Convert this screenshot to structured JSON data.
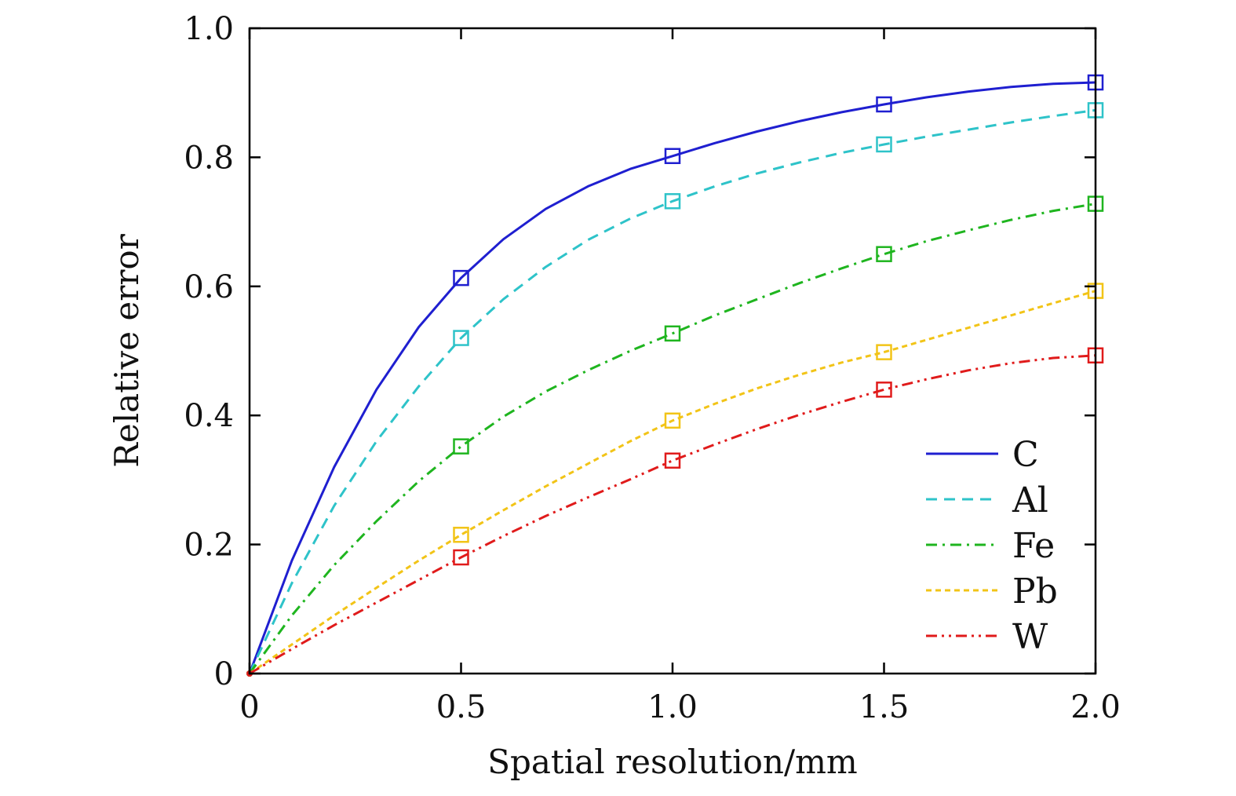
{
  "chart_data": {
    "type": "line",
    "xlabel": "Spatial resolution/mm",
    "ylabel": "Relative error",
    "xlim": [
      0,
      2.0
    ],
    "ylim": [
      0,
      1.0
    ],
    "x_ticks": [
      0,
      0.5,
      1.0,
      1.5,
      2.0
    ],
    "x_tick_labels": [
      "0",
      "0.5",
      "1.0",
      "1.5",
      "2.0"
    ],
    "y_ticks": [
      0,
      0.2,
      0.4,
      0.6,
      0.8,
      1.0
    ],
    "y_tick_labels": [
      "0",
      "0.2",
      "0.4",
      "0.6",
      "0.8",
      "1.0"
    ],
    "grid": false,
    "legend_position": "bottom-right",
    "marker": "square",
    "series": [
      {
        "name": "C",
        "color": "#1f1fd0",
        "dash": "solid",
        "x": [
          0,
          0.1,
          0.2,
          0.3,
          0.4,
          0.5,
          0.6,
          0.7,
          0.8,
          0.9,
          1.0,
          1.1,
          1.2,
          1.3,
          1.4,
          1.5,
          1.6,
          1.7,
          1.8,
          1.9,
          2.0
        ],
        "y": [
          0,
          0.175,
          0.32,
          0.44,
          0.537,
          0.613,
          0.673,
          0.72,
          0.755,
          0.782,
          0.802,
          0.822,
          0.84,
          0.856,
          0.87,
          0.882,
          0.893,
          0.902,
          0.909,
          0.914,
          0.916
        ],
        "marker_x": [
          0.5,
          1.0,
          1.5,
          2.0
        ],
        "marker_y": [
          0.613,
          0.802,
          0.882,
          0.916
        ]
      },
      {
        "name": "Al",
        "color": "#2ec3c9",
        "dash": "dashed",
        "x": [
          0,
          0.1,
          0.2,
          0.3,
          0.4,
          0.5,
          0.6,
          0.7,
          0.8,
          0.9,
          1.0,
          1.1,
          1.2,
          1.3,
          1.4,
          1.5,
          1.6,
          1.7,
          1.8,
          1.9,
          2.0
        ],
        "y": [
          0,
          0.14,
          0.26,
          0.36,
          0.445,
          0.52,
          0.58,
          0.63,
          0.672,
          0.705,
          0.732,
          0.755,
          0.775,
          0.792,
          0.807,
          0.82,
          0.832,
          0.843,
          0.854,
          0.864,
          0.873
        ],
        "marker_x": [
          0.5,
          1.0,
          1.5,
          2.0
        ],
        "marker_y": [
          0.52,
          0.732,
          0.82,
          0.873
        ]
      },
      {
        "name": "Fe",
        "color": "#1fb51f",
        "dash": "dash-dot",
        "x": [
          0,
          0.1,
          0.2,
          0.3,
          0.4,
          0.5,
          0.6,
          0.7,
          0.8,
          0.9,
          1.0,
          1.1,
          1.2,
          1.3,
          1.4,
          1.5,
          1.6,
          1.7,
          1.8,
          1.9,
          2.0
        ],
        "y": [
          0,
          0.09,
          0.168,
          0.236,
          0.298,
          0.352,
          0.398,
          0.437,
          0.47,
          0.5,
          0.527,
          0.555,
          0.58,
          0.605,
          0.628,
          0.65,
          0.67,
          0.687,
          0.703,
          0.717,
          0.728
        ],
        "marker_x": [
          0.5,
          1.0,
          1.5,
          2.0
        ],
        "marker_y": [
          0.352,
          0.527,
          0.65,
          0.728
        ]
      },
      {
        "name": "Pb",
        "color": "#f2c417",
        "dash": "dotted",
        "x": [
          0,
          0.1,
          0.2,
          0.3,
          0.4,
          0.5,
          0.6,
          0.7,
          0.8,
          0.9,
          1.0,
          1.1,
          1.2,
          1.3,
          1.4,
          1.5,
          1.6,
          1.7,
          1.8,
          1.9,
          2.0
        ],
        "y": [
          0,
          0.045,
          0.09,
          0.133,
          0.175,
          0.215,
          0.253,
          0.29,
          0.325,
          0.36,
          0.392,
          0.418,
          0.442,
          0.463,
          0.482,
          0.498,
          0.517,
          0.536,
          0.555,
          0.574,
          0.593
        ],
        "marker_x": [
          0.5,
          1.0,
          1.5,
          2.0
        ],
        "marker_y": [
          0.215,
          0.392,
          0.498,
          0.593
        ]
      },
      {
        "name": "W",
        "color": "#e01b1b",
        "dash": "dash-dot-dot",
        "x": [
          0,
          0.1,
          0.2,
          0.3,
          0.4,
          0.5,
          0.6,
          0.7,
          0.8,
          0.9,
          1.0,
          1.1,
          1.2,
          1.3,
          1.4,
          1.5,
          1.6,
          1.7,
          1.8,
          1.9,
          2.0
        ],
        "y": [
          0,
          0.038,
          0.075,
          0.11,
          0.145,
          0.18,
          0.213,
          0.244,
          0.273,
          0.301,
          0.33,
          0.355,
          0.379,
          0.401,
          0.421,
          0.44,
          0.456,
          0.47,
          0.481,
          0.489,
          0.493
        ],
        "marker_x": [
          0.5,
          1.0,
          1.5,
          2.0
        ],
        "marker_y": [
          0.18,
          0.33,
          0.44,
          0.493
        ]
      }
    ]
  }
}
